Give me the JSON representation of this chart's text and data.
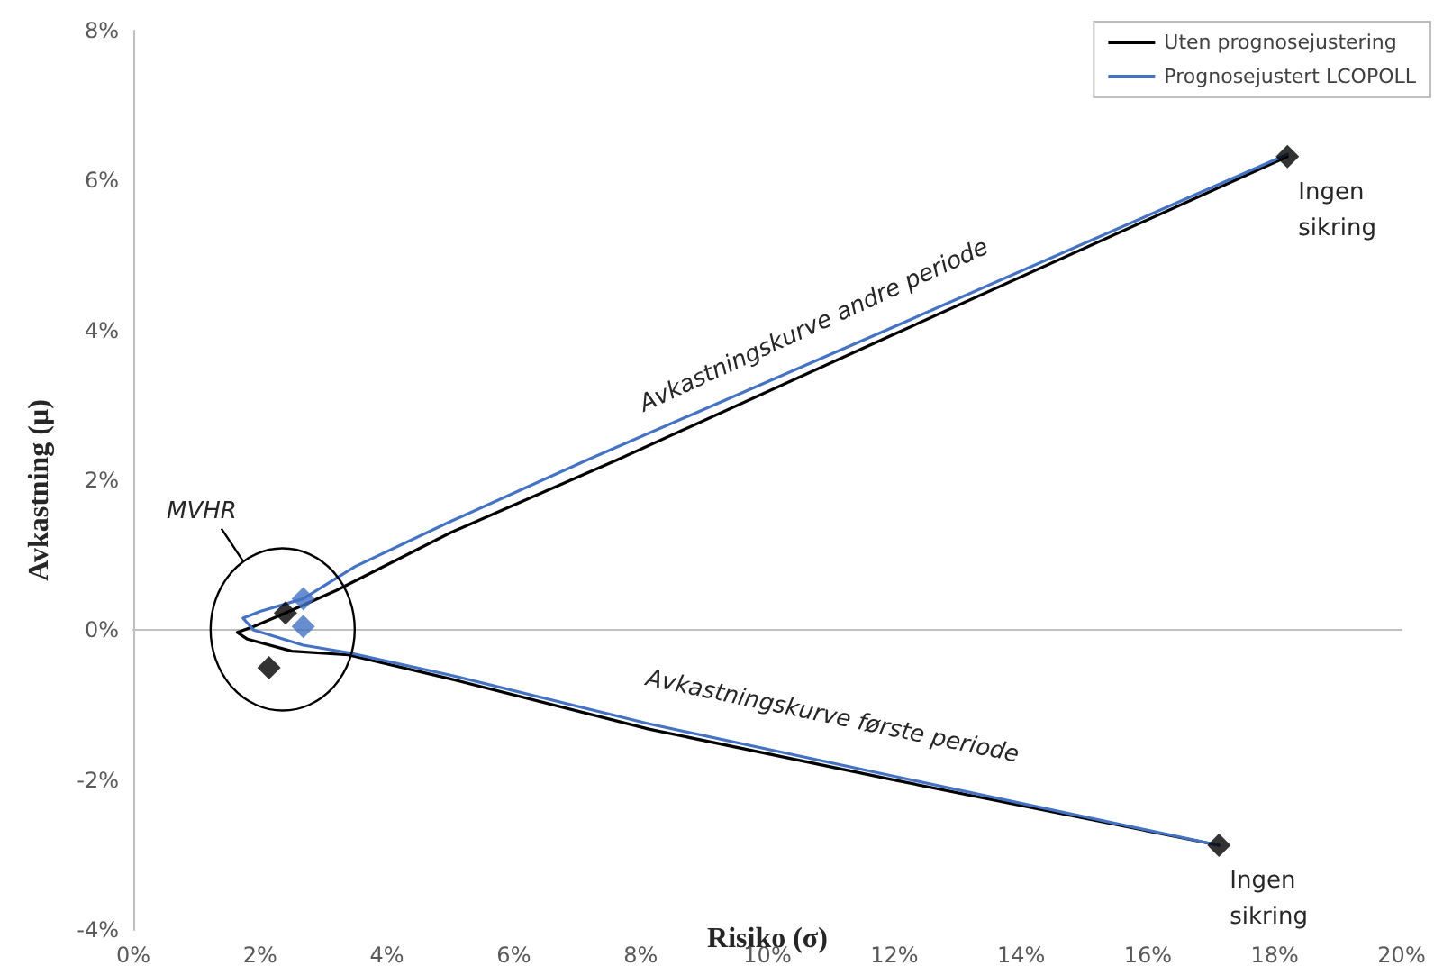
{
  "chart_data": {
    "type": "line",
    "xlabel": "Risiko (σ)",
    "ylabel": "Avkastning (μ)",
    "legend": "top right",
    "xlim": [
      0,
      20
    ],
    "xticks": [
      {
        "value": 0,
        "label": "0%"
      },
      {
        "value": 2,
        "label": "2%"
      },
      {
        "value": 4,
        "label": "4%"
      },
      {
        "value": 6,
        "label": "6%"
      },
      {
        "value": 8,
        "label": "8%"
      },
      {
        "value": 10,
        "label": "10%"
      },
      {
        "value": 12,
        "label": "12%"
      },
      {
        "value": 14,
        "label": "14%"
      },
      {
        "value": 16,
        "label": "16%"
      },
      {
        "value": 18,
        "label": "18%"
      },
      {
        "value": 20,
        "label": "20%"
      }
    ],
    "ylim": [
      -4,
      8
    ],
    "yticks": [
      {
        "value": -4,
        "label": "-4%"
      },
      {
        "value": -2,
        "label": "-2%"
      },
      {
        "value": 0,
        "label": "0%"
      },
      {
        "value": 2,
        "label": "2%"
      },
      {
        "value": 4,
        "label": "4%"
      },
      {
        "value": 6,
        "label": "6%"
      },
      {
        "value": 8,
        "label": "8%"
      }
    ],
    "series": [
      {
        "name": "Uten prognosejustering",
        "color": "#000000",
        "marker": "none",
        "x": [
          18.2,
          12,
          7.65,
          5,
          3.2,
          2.4,
          1.9,
          1.64,
          1.8,
          2.5,
          3.39,
          5,
          8.13,
          12,
          17.12
        ],
        "values": [
          6.32,
          3.95,
          2.28,
          1.3,
          0.53,
          0.23,
          0.05,
          -0.03,
          -0.12,
          -0.28,
          -0.33,
          -0.65,
          -1.32,
          -2.0,
          -2.87
        ]
      },
      {
        "name": "Prognosejustert LCOPOLL",
        "color": "#4472c4",
        "marker": "none",
        "x": [
          18.2,
          12,
          7.18,
          5,
          3.5,
          2.68,
          2.0,
          1.73,
          1.9,
          2.68,
          3.39,
          5,
          8.13,
          12,
          17.12
        ],
        "values": [
          6.35,
          4.05,
          2.28,
          1.45,
          0.85,
          0.42,
          0.25,
          0.16,
          0.0,
          -0.2,
          -0.3,
          -0.6,
          -1.25,
          -1.95,
          -2.87
        ]
      },
      {
        "type": "scatter",
        "color": "#4472c4",
        "marker": "diamond",
        "x": [
          2.68,
          2.68
        ],
        "values": [
          0.42,
          0.05
        ]
      },
      {
        "type": "scatter",
        "color": "#000000",
        "marker": "diamond",
        "x": [
          2.4,
          2.14,
          18.2,
          17.12
        ],
        "values": [
          0.23,
          -0.5,
          6.32,
          -2.87
        ]
      }
    ],
    "annotations": [
      "MVHR",
      "Avkastningskurve andre periode",
      "Avkastningskurve første periode",
      {
        "text": "Ingen sikring",
        "x": 18.2,
        "y": 6.32
      },
      {
        "text": "Ingen sikring",
        "x": 17.12,
        "y": -2.87
      }
    ]
  }
}
